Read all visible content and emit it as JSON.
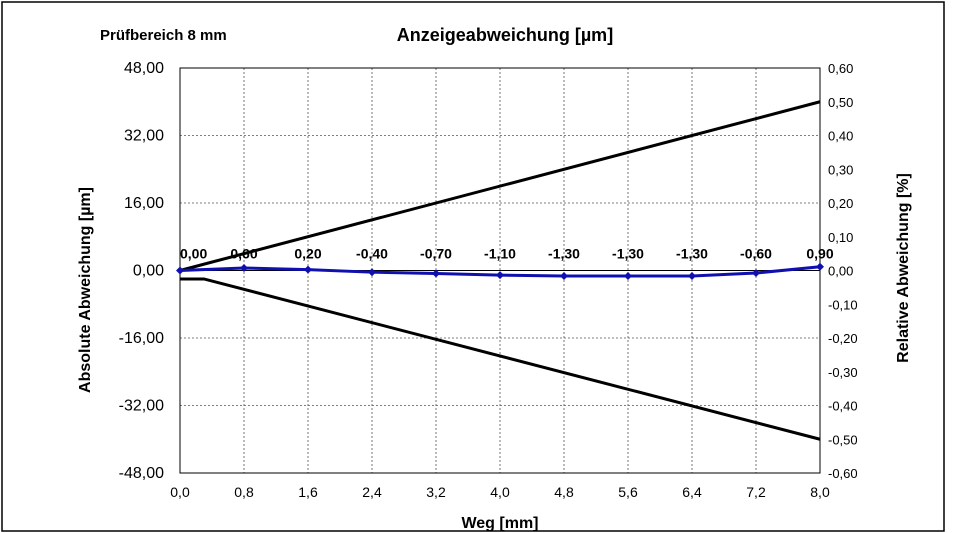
{
  "chart_data": {
    "type": "line",
    "title": "Anzeigeabweichung [µm]",
    "subtitle": "Prüfbereich 8 mm",
    "xlabel": "Weg [mm]",
    "ylabel": "Absolute Abweichung [µm]",
    "y2label": "Relative Abweichung [%]",
    "xlim": [
      0,
      8
    ],
    "ylim": [
      -48,
      48
    ],
    "y2lim": [
      -0.6,
      0.6
    ],
    "x_ticks": [
      "0,0",
      "0,8",
      "1,6",
      "2,4",
      "3,2",
      "4,0",
      "4,8",
      "5,6",
      "6,4",
      "7,2",
      "8,0"
    ],
    "y_ticks": [
      "48,00",
      "32,00",
      "16,00",
      "0,00",
      "-16,00",
      "-32,00",
      "-48,00"
    ],
    "y2_ticks": [
      "0,60",
      "0,50",
      "0,40",
      "0,30",
      "0,20",
      "0,10",
      "0,00",
      "-0,10",
      "-0,20",
      "-0,30",
      "-0,40",
      "-0,50",
      "-0,60"
    ],
    "grid": true,
    "series": [
      {
        "role": "measurement",
        "color": "#1010b0",
        "marker": "diamond",
        "x": [
          0,
          0.8,
          1.6,
          2.4,
          3.2,
          4.0,
          4.8,
          5.6,
          6.4,
          7.2,
          8.0
        ],
        "y": [
          0.0,
          0.6,
          0.2,
          -0.4,
          -0.7,
          -1.1,
          -1.3,
          -1.3,
          -1.3,
          -0.6,
          0.9
        ],
        "labels": [
          "0,00",
          "0,60",
          "0,20",
          "-0,40",
          "-0,70",
          "-1,10",
          "-1,30",
          "-1,30",
          "-1,30",
          "-0,60",
          "0,90"
        ]
      },
      {
        "role": "upper-limit",
        "color": "#000000",
        "x": [
          0,
          8.0
        ],
        "y": [
          0,
          40
        ]
      },
      {
        "role": "lower-limit",
        "color": "#000000",
        "x": [
          0,
          0.3,
          8.0
        ],
        "y": [
          -2,
          -2,
          -40
        ]
      }
    ]
  }
}
